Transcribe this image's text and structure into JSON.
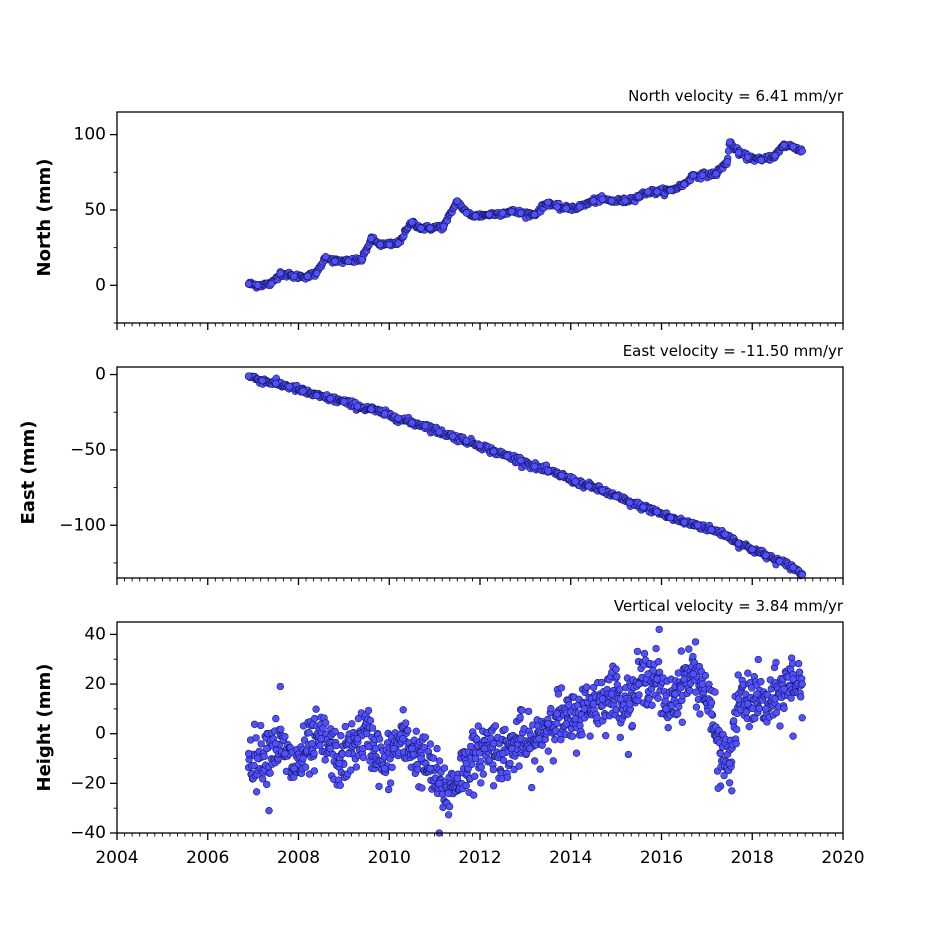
{
  "colors": {
    "marker_fill": "#5050ff",
    "marker_edge": "#14145a",
    "axis": "#000000",
    "background": "#ffffff"
  },
  "chart_data": [
    {
      "type": "scatter",
      "title": "North velocity = 6.41 mm/yr",
      "xlabel": "",
      "ylabel": "North (mm)",
      "xlim": [
        2004,
        2020
      ],
      "ylim": [
        -25,
        115
      ],
      "xticks": [
        2004,
        2006,
        2008,
        2010,
        2012,
        2014,
        2016,
        2018,
        2020
      ],
      "yticks": [
        0,
        50,
        100
      ],
      "ytick_labels": [
        "0",
        "50",
        "100"
      ],
      "show_xtick_labels": false,
      "series": [
        {
          "x": [
            2006.9,
            2007.1,
            2007.4,
            2007.6,
            2007.9,
            2008.2,
            2008.4,
            2008.6,
            2008.8,
            2009.1,
            2009.4,
            2009.6,
            2009.8,
            2010.0,
            2010.2,
            2010.5,
            2010.7,
            2010.9,
            2011.2,
            2011.5,
            2011.7,
            2011.9,
            2012.2,
            2012.5,
            2012.7,
            2012.9,
            2013.2,
            2013.5,
            2013.7,
            2013.9,
            2014.2,
            2014.5,
            2014.7,
            2014.9,
            2015.2,
            2015.5,
            2015.7,
            2015.9,
            2016.2,
            2016.5,
            2016.7,
            2016.9,
            2017.2,
            2017.45,
            2017.5,
            2017.7,
            2017.9,
            2018.2,
            2018.5,
            2018.7,
            2018.9,
            2019.1
          ],
          "y": [
            1,
            0,
            1,
            8,
            6,
            6,
            8,
            19,
            16,
            16,
            17,
            31,
            27,
            27,
            28,
            42,
            38,
            38,
            39,
            56,
            48,
            46,
            47,
            48,
            49,
            48,
            47,
            55,
            52,
            51,
            52,
            56,
            57,
            56,
            56,
            59,
            62,
            62,
            63,
            67,
            73,
            73,
            74,
            82,
            95,
            88,
            85,
            83,
            86,
            93,
            92,
            89
          ]
        }
      ]
    },
    {
      "type": "scatter",
      "title": "East velocity = -11.50 mm/yr",
      "xlabel": "",
      "ylabel": "East (mm)",
      "xlim": [
        2004,
        2020
      ],
      "ylim": [
        -135,
        5
      ],
      "xticks": [
        2004,
        2006,
        2008,
        2010,
        2012,
        2014,
        2016,
        2018,
        2020
      ],
      "yticks": [
        0,
        -50,
        -100
      ],
      "ytick_labels": [
        "0",
        "−50",
        "−100"
      ],
      "show_xtick_labels": false,
      "series": [
        {
          "x": [
            2006.9,
            2007.2,
            2007.5,
            2007.8,
            2008.1,
            2008.4,
            2008.7,
            2009.0,
            2009.3,
            2009.6,
            2009.9,
            2010.2,
            2010.5,
            2010.8,
            2011.1,
            2011.4,
            2011.7,
            2012.0,
            2012.3,
            2012.6,
            2012.9,
            2013.2,
            2013.5,
            2013.8,
            2014.1,
            2014.4,
            2014.7,
            2015.0,
            2015.3,
            2015.6,
            2015.9,
            2016.2,
            2016.5,
            2016.8,
            2017.1,
            2017.4,
            2017.7,
            2018.0,
            2018.3,
            2018.6,
            2018.9,
            2019.1
          ],
          "y": [
            -1,
            -4,
            -6,
            -8,
            -11,
            -14,
            -16,
            -18,
            -21,
            -23,
            -26,
            -29,
            -32,
            -34,
            -38,
            -41,
            -44,
            -47,
            -51,
            -54,
            -57,
            -61,
            -64,
            -67,
            -71,
            -74,
            -77,
            -81,
            -85,
            -88,
            -91,
            -95,
            -98,
            -100,
            -103,
            -106,
            -112,
            -116,
            -120,
            -124,
            -128,
            -133
          ]
        }
      ]
    },
    {
      "type": "scatter",
      "title": "Vertical velocity = 3.84 mm/yr",
      "xlabel": "",
      "ylabel": "Height (mm)",
      "xlim": [
        2004,
        2020
      ],
      "ylim": [
        -40,
        45
      ],
      "xticks": [
        2004,
        2006,
        2008,
        2010,
        2012,
        2014,
        2016,
        2018,
        2020
      ],
      "xtick_labels": [
        "2004",
        "2006",
        "2008",
        "2010",
        "2012",
        "2014",
        "2016",
        "2018",
        "2020"
      ],
      "yticks": [
        -40,
        -20,
        0,
        20,
        40
      ],
      "ytick_labels": [
        "−40",
        "−20",
        "0",
        "20",
        "40"
      ],
      "show_xtick_labels": true,
      "series": [
        {
          "x": [
            2006.9,
            2007.1,
            2007.3,
            2007.5,
            2007.7,
            2007.9,
            2008.1,
            2008.3,
            2008.5,
            2008.7,
            2008.9,
            2009.1,
            2009.3,
            2009.5,
            2009.7,
            2009.9,
            2010.1,
            2010.3,
            2010.5,
            2010.7,
            2010.9,
            2011.1,
            2011.3,
            2011.5,
            2011.7,
            2011.9,
            2012.1,
            2012.3,
            2012.5,
            2012.7,
            2012.9,
            2013.1,
            2013.3,
            2013.5,
            2013.7,
            2013.9,
            2014.1,
            2014.3,
            2014.5,
            2014.7,
            2014.9,
            2015.1,
            2015.3,
            2015.5,
            2015.7,
            2015.9,
            2016.1,
            2016.3,
            2016.5,
            2016.7,
            2016.9,
            2017.1,
            2017.3,
            2017.5,
            2017.7,
            2017.9,
            2018.1,
            2018.3,
            2018.5,
            2018.7,
            2018.9,
            2019.1
          ],
          "y": [
            -8,
            -10,
            -6,
            -4,
            -8,
            -14,
            -10,
            -4,
            -2,
            -6,
            -12,
            -8,
            -2,
            0,
            -6,
            -14,
            -6,
            -2,
            -6,
            -10,
            -14,
            -20,
            -24,
            -18,
            -12,
            -10,
            -6,
            -4,
            -8,
            -6,
            -2,
            -6,
            -2,
            4,
            8,
            4,
            6,
            10,
            12,
            14,
            16,
            14,
            12,
            20,
            24,
            22,
            10,
            16,
            22,
            24,
            20,
            8,
            -8,
            -12,
            14,
            12,
            16,
            10,
            14,
            18,
            22,
            20
          ]
        },
        {
          "x": [
            2007.35,
            2007.6,
            2008.35,
            2011.1,
            2012.3,
            2015.0,
            2015.95,
            2016.75,
            2017.25,
            2017.55,
            2018.9
          ],
          "y": [
            -31,
            19,
            -15,
            -40,
            -21,
            26,
            42,
            37,
            -22,
            -23,
            -1
          ],
          "note": "outliers"
        }
      ]
    }
  ]
}
